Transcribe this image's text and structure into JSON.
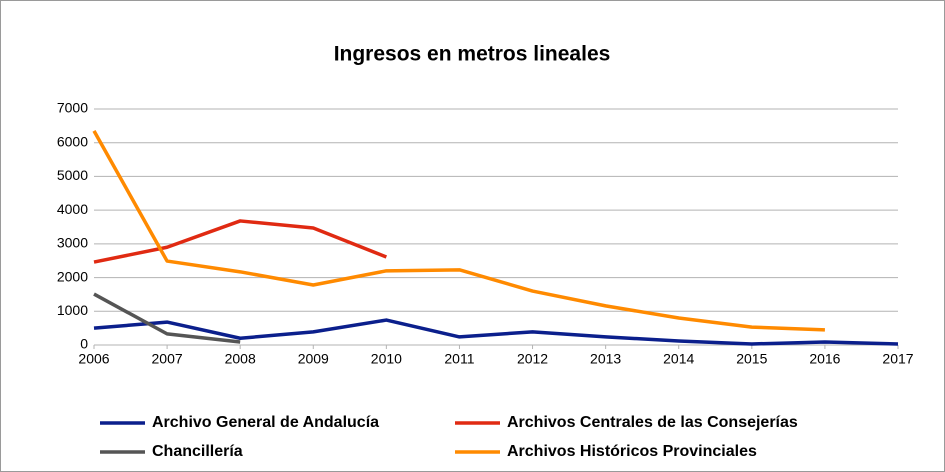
{
  "chart_data": {
    "type": "line",
    "title": "Ingresos en metros lineales",
    "x": [
      2006,
      2007,
      2008,
      2009,
      2010,
      2011,
      2012,
      2013,
      2014,
      2015,
      2016,
      2017
    ],
    "xlim": [
      2006,
      2017
    ],
    "xticks": [
      2006,
      2007,
      2008,
      2009,
      2010,
      2011,
      2012,
      2013,
      2014,
      2015,
      2016,
      2017
    ],
    "ylim": [
      0,
      7000
    ],
    "yticks": [
      0,
      1000,
      2000,
      3000,
      4000,
      5000,
      6000,
      7000
    ],
    "grid": true,
    "legend": "bottom",
    "series": [
      {
        "name": "Archivo General de Andalucía",
        "color": "#0b1f8c",
        "values": [
          500,
          680,
          200,
          390,
          740,
          240,
          390,
          240,
          120,
          30,
          90,
          30
        ]
      },
      {
        "name": "Archivos Centrales de las Consejerías",
        "color": "#e02a12",
        "values": [
          2460,
          2900,
          3680,
          3470,
          2610,
          null,
          null,
          null,
          null,
          null,
          null,
          null
        ]
      },
      {
        "name": "Chancillería",
        "color": "#555555",
        "values": [
          1510,
          330,
          90,
          null,
          null,
          null,
          null,
          null,
          null,
          null,
          null,
          null
        ]
      },
      {
        "name": "Archivos Históricos Provinciales",
        "color": "#ff8a00",
        "values": [
          6350,
          2490,
          2170,
          1780,
          2200,
          2230,
          1600,
          1160,
          800,
          530,
          450,
          null
        ]
      }
    ]
  }
}
